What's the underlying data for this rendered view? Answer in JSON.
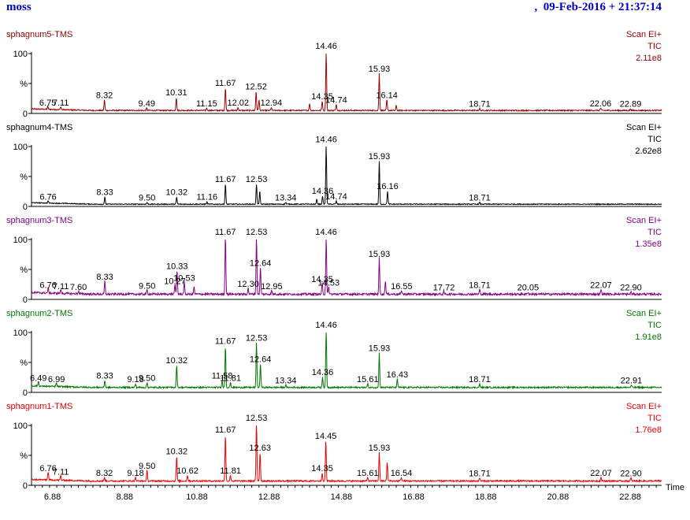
{
  "header": {
    "left_title": "moss",
    "right_text": ",  09-Feb-2016 + 21:37:14"
  },
  "chart_data": {
    "type": "line",
    "xlabel": "Time",
    "xlim": [
      6.3,
      23.75
    ],
    "x_ticks": [
      "6.88",
      "8.88",
      "10.88",
      "12.88",
      "14.88",
      "16.88",
      "18.88",
      "20.88",
      "22.88"
    ],
    "x_tick_values": [
      6.88,
      8.88,
      10.88,
      12.88,
      14.88,
      16.88,
      18.88,
      20.88,
      22.88
    ],
    "y_tick_labels": {
      "top": "100",
      "mid": "%",
      "bottom": "0"
    },
    "panels": [
      {
        "name": "sphagnum5-TMS",
        "color": "#990000",
        "scan": "Scan EI+",
        "tic": "TIC",
        "intensity": "2.11e8",
        "baseline": 4,
        "noise": 2,
        "peaks": [
          {
            "t": 6.75,
            "h": 5,
            "label": "6.75"
          },
          {
            "t": 7.11,
            "h": 5,
            "label": "7.11"
          },
          {
            "t": 8.32,
            "h": 18,
            "label": "8.32"
          },
          {
            "t": 9.49,
            "h": 4,
            "label": "9.49"
          },
          {
            "t": 10.31,
            "h": 22,
            "label": "10.31"
          },
          {
            "t": 11.15,
            "h": 4,
            "label": "11.15"
          },
          {
            "t": 11.67,
            "h": 38,
            "label": "11.67"
          },
          {
            "t": 12.02,
            "h": 5,
            "label": "12.02"
          },
          {
            "t": 12.52,
            "h": 32,
            "label": "12.52"
          },
          {
            "t": 12.6,
            "h": 18,
            "label": ""
          },
          {
            "t": 12.94,
            "h": 5,
            "label": "12.94"
          },
          {
            "t": 14.0,
            "h": 12,
            "label": ""
          },
          {
            "t": 14.35,
            "h": 16,
            "label": "14.35"
          },
          {
            "t": 14.46,
            "h": 100,
            "label": "14.46"
          },
          {
            "t": 14.74,
            "h": 10,
            "label": "14.74"
          },
          {
            "t": 15.93,
            "h": 62,
            "label": "15.93"
          },
          {
            "t": 16.14,
            "h": 18,
            "label": "16.14"
          },
          {
            "t": 16.4,
            "h": 8,
            "label": ""
          },
          {
            "t": 18.71,
            "h": 3,
            "label": "18.71"
          },
          {
            "t": 22.06,
            "h": 4,
            "label": "22.06"
          },
          {
            "t": 22.89,
            "h": 3,
            "label": "22.89"
          }
        ]
      },
      {
        "name": "sphagnum4-TMS",
        "color": "#000000",
        "scan": "Scan EI+",
        "tic": "TIC",
        "intensity": "2.62e8",
        "baseline": 3,
        "noise": 1.5,
        "peaks": [
          {
            "t": 6.76,
            "h": 4,
            "label": "6.76"
          },
          {
            "t": 8.33,
            "h": 12,
            "label": "8.33"
          },
          {
            "t": 9.5,
            "h": 3,
            "label": "9.50"
          },
          {
            "t": 10.32,
            "h": 12,
            "label": "10.32"
          },
          {
            "t": 11.16,
            "h": 4,
            "label": "11.16"
          },
          {
            "t": 11.67,
            "h": 34,
            "label": "11.67"
          },
          {
            "t": 12.53,
            "h": 34,
            "label": "12.53"
          },
          {
            "t": 12.62,
            "h": 22,
            "label": ""
          },
          {
            "t": 13.34,
            "h": 3,
            "label": "13.34"
          },
          {
            "t": 14.2,
            "h": 8,
            "label": ""
          },
          {
            "t": 14.36,
            "h": 14,
            "label": "14.36"
          },
          {
            "t": 14.46,
            "h": 100,
            "label": "14.46"
          },
          {
            "t": 14.74,
            "h": 5,
            "label": "14.74"
          },
          {
            "t": 15.93,
            "h": 72,
            "label": "15.93"
          },
          {
            "t": 16.16,
            "h": 22,
            "label": "16.16"
          },
          {
            "t": 18.71,
            "h": 3,
            "label": "18.71"
          }
        ]
      },
      {
        "name": "sphagnum3-TMS",
        "color": "#880088",
        "scan": "Scan EI+",
        "tic": "TIC",
        "intensity": "1.35e8",
        "baseline": 7,
        "noise": 3.5,
        "peaks": [
          {
            "t": 6.76,
            "h": 8,
            "label": "6.76"
          },
          {
            "t": 7.11,
            "h": 6,
            "label": "7.11"
          },
          {
            "t": 7.6,
            "h": 5,
            "label": "7.60"
          },
          {
            "t": 8.33,
            "h": 22,
            "label": "8.33"
          },
          {
            "t": 9.5,
            "h": 7,
            "label": "9.50"
          },
          {
            "t": 10.27,
            "h": 15,
            "label": "10.27"
          },
          {
            "t": 10.33,
            "h": 40,
            "label": "10.33"
          },
          {
            "t": 10.53,
            "h": 20,
            "label": "10.53"
          },
          {
            "t": 10.8,
            "h": 12,
            "label": ""
          },
          {
            "t": 11.67,
            "h": 100,
            "label": "11.67"
          },
          {
            "t": 12.3,
            "h": 10,
            "label": "12.30"
          },
          {
            "t": 12.53,
            "h": 98,
            "label": "12.53"
          },
          {
            "t": 12.64,
            "h": 45,
            "label": "12.64"
          },
          {
            "t": 12.95,
            "h": 6,
            "label": "12.95"
          },
          {
            "t": 14.35,
            "h": 18,
            "label": "14.35"
          },
          {
            "t": 14.46,
            "h": 100,
            "label": "14.46"
          },
          {
            "t": 14.53,
            "h": 12,
            "label": "14.53"
          },
          {
            "t": 15.93,
            "h": 60,
            "label": "15.93"
          },
          {
            "t": 16.1,
            "h": 22,
            "label": ""
          },
          {
            "t": 16.55,
            "h": 6,
            "label": "16.55"
          },
          {
            "t": 17.72,
            "h": 4,
            "label": "17.72"
          },
          {
            "t": 18.71,
            "h": 8,
            "label": "18.71"
          },
          {
            "t": 20.05,
            "h": 4,
            "label": "20.05"
          },
          {
            "t": 22.07,
            "h": 8,
            "label": "22.07"
          },
          {
            "t": 22.9,
            "h": 4,
            "label": "22.90"
          }
        ]
      },
      {
        "name": "sphagnum2-TMS",
        "color": "#007700",
        "scan": "Scan EI+",
        "tic": "TIC",
        "intensity": "1.91e8",
        "baseline": 7,
        "noise": 2.5,
        "peaks": [
          {
            "t": 6.49,
            "h": 8,
            "label": "6.49"
          },
          {
            "t": 6.99,
            "h": 6,
            "label": "6.99"
          },
          {
            "t": 8.33,
            "h": 12,
            "label": "8.33"
          },
          {
            "t": 9.18,
            "h": 6,
            "label": "9.18"
          },
          {
            "t": 9.5,
            "h": 8,
            "label": "9.50"
          },
          {
            "t": 10.32,
            "h": 38,
            "label": "10.32"
          },
          {
            "t": 11.58,
            "h": 12,
            "label": "11.58"
          },
          {
            "t": 11.67,
            "h": 70,
            "label": "11.67"
          },
          {
            "t": 11.81,
            "h": 8,
            "label": "11.81"
          },
          {
            "t": 12.53,
            "h": 75,
            "label": "12.53"
          },
          {
            "t": 12.64,
            "h": 40,
            "label": "12.64"
          },
          {
            "t": 13.34,
            "h": 4,
            "label": "13.34"
          },
          {
            "t": 14.36,
            "h": 18,
            "label": "14.36"
          },
          {
            "t": 14.46,
            "h": 100,
            "label": "14.46"
          },
          {
            "t": 15.61,
            "h": 6,
            "label": "15.61"
          },
          {
            "t": 15.93,
            "h": 58,
            "label": "15.93"
          },
          {
            "t": 16.43,
            "h": 14,
            "label": "16.43"
          },
          {
            "t": 18.71,
            "h": 6,
            "label": "18.71"
          },
          {
            "t": 22.91,
            "h": 4,
            "label": "22.91"
          }
        ]
      },
      {
        "name": "sphagnum1-TMS",
        "color": "#ee0000",
        "scan": "Scan EI+",
        "tic": "TIC",
        "intensity": "1.76e8",
        "baseline": 6,
        "noise": 2.5,
        "peaks": [
          {
            "t": 6.76,
            "h": 14,
            "label": "6.76"
          },
          {
            "t": 7.11,
            "h": 8,
            "label": "7.11"
          },
          {
            "t": 8.32,
            "h": 6,
            "label": "8.32"
          },
          {
            "t": 9.18,
            "h": 6,
            "label": "9.18"
          },
          {
            "t": 9.5,
            "h": 18,
            "label": "9.50"
          },
          {
            "t": 10.32,
            "h": 42,
            "label": "10.32"
          },
          {
            "t": 10.62,
            "h": 10,
            "label": "10.62"
          },
          {
            "t": 11.67,
            "h": 78,
            "label": "11.67"
          },
          {
            "t": 11.81,
            "h": 10,
            "label": "11.81"
          },
          {
            "t": 12.53,
            "h": 100,
            "label": "12.53"
          },
          {
            "t": 12.63,
            "h": 48,
            "label": "12.63"
          },
          {
            "t": 14.35,
            "h": 14,
            "label": "14.35"
          },
          {
            "t": 14.45,
            "h": 68,
            "label": "14.45"
          },
          {
            "t": 15.61,
            "h": 6,
            "label": "15.61"
          },
          {
            "t": 15.93,
            "h": 48,
            "label": "15.93"
          },
          {
            "t": 16.15,
            "h": 32,
            "label": ""
          },
          {
            "t": 16.54,
            "h": 6,
            "label": "16.54"
          },
          {
            "t": 18.71,
            "h": 5,
            "label": "18.71"
          },
          {
            "t": 22.07,
            "h": 6,
            "label": "22.07"
          },
          {
            "t": 22.9,
            "h": 5,
            "label": "22.90"
          }
        ]
      }
    ]
  }
}
